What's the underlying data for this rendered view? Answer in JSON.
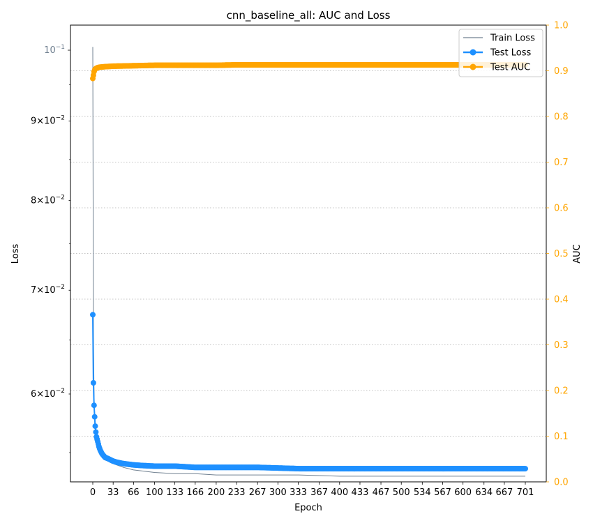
{
  "chart_data": {
    "type": "line",
    "title": "cnn_baseline_all: AUC and Loss",
    "xlabel": "Epoch",
    "ylabel_left": "Loss",
    "ylabel_right": "AUC",
    "xlim": [
      0,
      701
    ],
    "x_ticks": [
      "0",
      "33",
      "66",
      "100",
      "133",
      "166",
      "200",
      "233",
      "267",
      "300",
      "333",
      "367",
      "400",
      "433",
      "467",
      "500",
      "534",
      "567",
      "600",
      "634",
      "667",
      "701"
    ],
    "y_left_scale": "log",
    "y_left_ticks": [
      {
        "value": 0.06,
        "base": "6",
        "exp": "-2"
      },
      {
        "value": 0.07,
        "base": "7",
        "exp": "-2"
      },
      {
        "value": 0.08,
        "base": "8",
        "exp": "-2"
      },
      {
        "value": 0.09,
        "base": "9",
        "exp": "-2"
      },
      {
        "value": 0.1,
        "base": "10",
        "exp": "-1",
        "is_power": true
      }
    ],
    "y_right_ticks": [
      "0.0",
      "0.1",
      "0.2",
      "0.3",
      "0.4",
      "0.5",
      "0.6",
      "0.7",
      "0.8",
      "0.9",
      "1.0"
    ],
    "ylim_right": [
      0,
      1
    ],
    "grid": "horizontal dotted (right axis)",
    "legend_position": "top-right",
    "series": [
      {
        "name": "Train Loss",
        "axis": "left",
        "color": "#708090",
        "marker": "none",
        "x": [
          0,
          1,
          2,
          3,
          5,
          8,
          12,
          20,
          33,
          50,
          66,
          100,
          133,
          166,
          200,
          267,
          334,
          400,
          467,
          534,
          600,
          667,
          701
        ],
        "values": [
          0.1005,
          0.066,
          0.06,
          0.0575,
          0.0565,
          0.0557,
          0.0551,
          0.0545,
          0.0541,
          0.0538,
          0.0536,
          0.0534,
          0.0533,
          0.0533,
          0.0532,
          0.0532,
          0.0532,
          0.0531,
          0.0531,
          0.0531,
          0.0531,
          0.0531,
          0.0531
        ]
      },
      {
        "name": "Test Loss",
        "axis": "left",
        "color": "#1E90FF",
        "marker": "circle",
        "x": [
          0,
          1,
          2,
          3,
          4,
          5,
          6,
          8,
          10,
          12,
          15,
          20,
          25,
          33,
          40,
          50,
          66,
          80,
          100,
          133,
          166,
          200,
          267,
          334,
          400,
          467,
          534,
          600,
          667,
          701
        ],
        "values": [
          0.0675,
          0.061,
          0.059,
          0.058,
          0.0572,
          0.0567,
          0.0563,
          0.0559,
          0.0555,
          0.0552,
          0.0549,
          0.0546,
          0.0545,
          0.0543,
          0.0542,
          0.0541,
          0.054,
          0.05395,
          0.0539,
          0.0539,
          0.0538,
          0.0538,
          0.0538,
          0.0537,
          0.0537,
          0.0537,
          0.0537,
          0.0537,
          0.0537,
          0.0537
        ]
      },
      {
        "name": "Test AUC",
        "axis": "right",
        "color": "#FFA500",
        "marker": "circle",
        "x": [
          0,
          1,
          2,
          3,
          5,
          8,
          12,
          20,
          33,
          66,
          100,
          133,
          166,
          200,
          233,
          267,
          300,
          334,
          400,
          467,
          534,
          600,
          667,
          701
        ],
        "values": [
          0.883,
          0.89,
          0.898,
          0.902,
          0.905,
          0.907,
          0.908,
          0.909,
          0.91,
          0.911,
          0.912,
          0.912,
          0.912,
          0.912,
          0.913,
          0.913,
          0.913,
          0.913,
          0.913,
          0.913,
          0.913,
          0.913,
          0.913,
          0.913
        ]
      }
    ]
  }
}
